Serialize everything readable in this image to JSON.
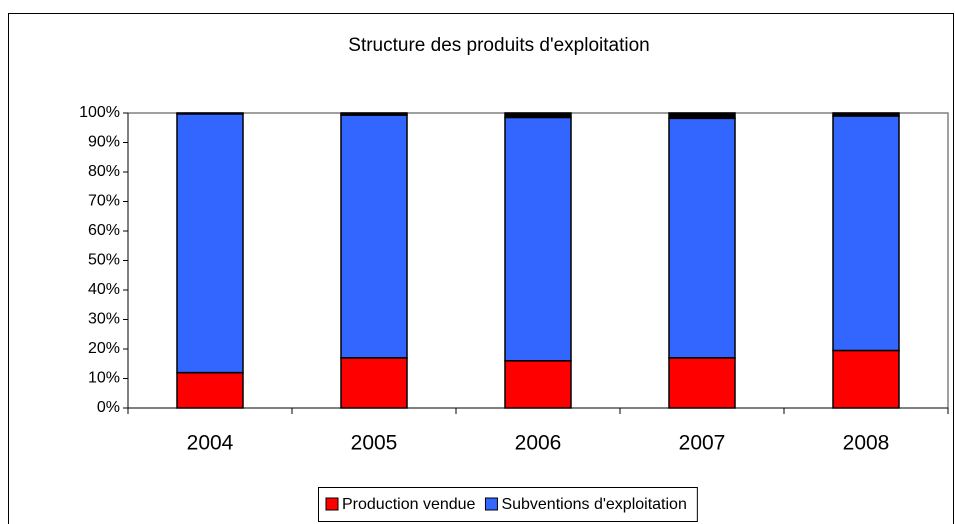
{
  "chart_data": {
    "type": "stacked_bar_100",
    "title": "Structure des produits d'exploitation",
    "categories": [
      "2004",
      "2005",
      "2006",
      "2007",
      "2008"
    ],
    "series": [
      {
        "name": "Production vendue",
        "color": "#ff0000",
        "values": [
          12,
          17,
          16,
          17,
          19.5
        ]
      },
      {
        "name": "Subventions d'exploitation",
        "color": "#3366ff",
        "values": [
          87.7,
          82.3,
          82.5,
          81.2,
          79.5
        ]
      },
      {
        "color": "#000000",
        "values": [
          0.3,
          0.7,
          1.5,
          1.8,
          1.0
        ]
      }
    ],
    "ylim": [
      0,
      100
    ],
    "yticks": [
      {
        "value": 0,
        "label": "0%"
      },
      {
        "value": 10,
        "label": "10%"
      },
      {
        "value": 20,
        "label": "20%"
      },
      {
        "value": 30,
        "label": "30%"
      },
      {
        "value": 40,
        "label": "40%"
      },
      {
        "value": 50,
        "label": "50%"
      },
      {
        "value": 60,
        "label": "60%"
      },
      {
        "value": 70,
        "label": "70%"
      },
      {
        "value": 80,
        "label": "80%"
      },
      {
        "value": 90,
        "label": "90%"
      },
      {
        "value": 100,
        "label": "100%"
      }
    ],
    "grid": false,
    "legend": "bottom"
  }
}
